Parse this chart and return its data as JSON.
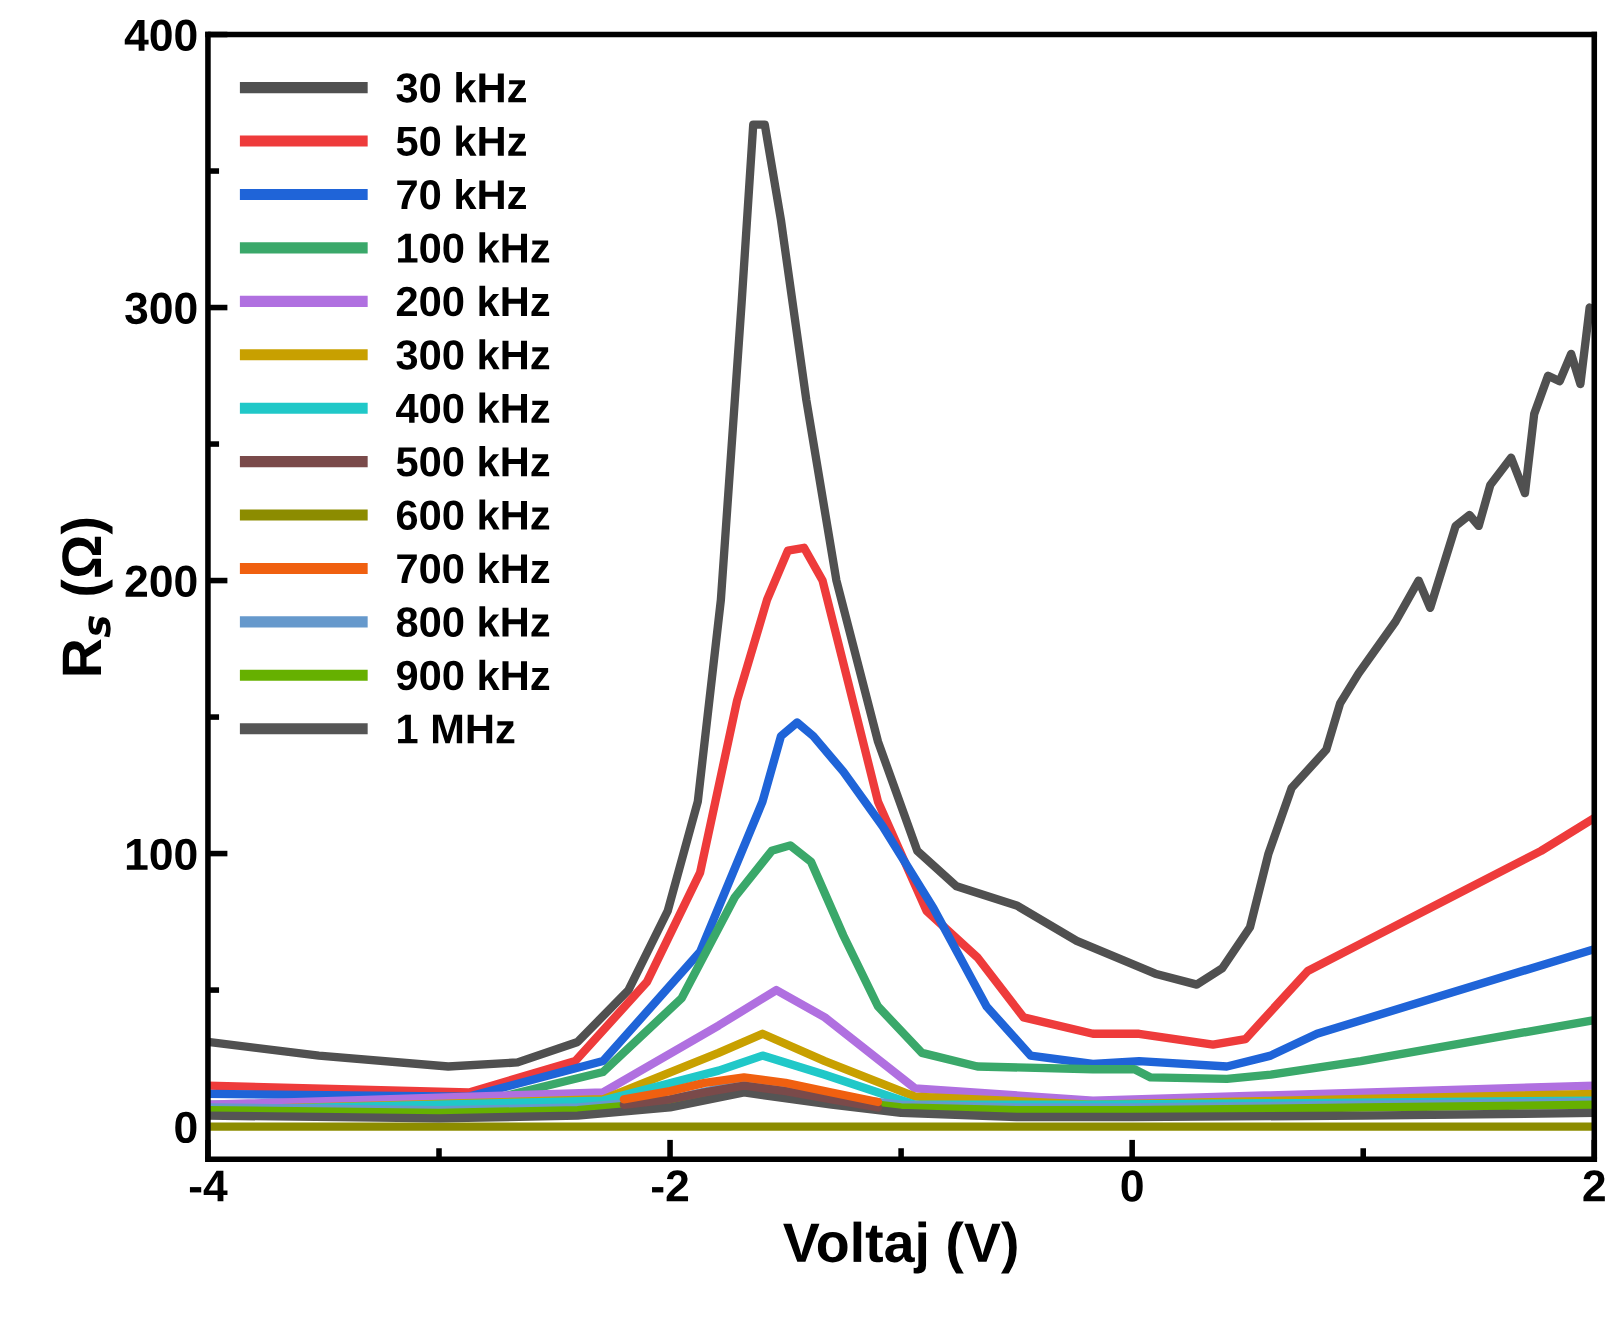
{
  "chart_data": {
    "type": "line",
    "xlabel": "Voltaj (V)",
    "ylabel": "R$_{s}$ (Ω)",
    "xlim": [
      -4,
      2
    ],
    "ylim": [
      -12,
      400
    ],
    "xticks": [
      -4,
      {
        "value": -3,
        "label": null
      },
      -2,
      {
        "value": -1,
        "label": null
      },
      0,
      {
        "value": 1,
        "label": null
      },
      2
    ],
    "yticks": [
      0,
      {
        "value": 50,
        "label": null
      },
      100,
      {
        "value": 150,
        "label": null
      },
      200,
      {
        "value": 250,
        "label": null
      },
      300,
      {
        "value": 350,
        "label": null
      },
      400
    ],
    "legend": "top left",
    "grid": false,
    "line_style": "solid",
    "marker": "none",
    "series": [
      {
        "name": "30 kHz",
        "color": "#505050",
        "x": [
          -4,
          -3.52,
          -2.96,
          -2.66,
          -2.4,
          -2.18,
          -2.01,
          -1.88,
          -1.78,
          -1.69,
          -1.64,
          -1.59,
          -1.52,
          -1.41,
          -1.28,
          -1.1,
          -0.93,
          -0.76,
          -0.5,
          -0.24,
          -0.04,
          0.1,
          0.28,
          0.39,
          0.51,
          0.59,
          0.69,
          0.84,
          0.9,
          0.98,
          1.14,
          1.24,
          1.29,
          1.4,
          1.46,
          1.5,
          1.55,
          1.64,
          1.7,
          1.74,
          1.8,
          1.85,
          1.9,
          1.94,
          1.98
        ],
        "values": [
          31,
          26,
          22,
          23.5,
          31,
          50,
          79,
          119,
          193,
          302,
          367,
          367,
          332,
          266,
          200,
          141,
          101,
          88,
          81,
          68,
          61,
          56,
          52,
          58,
          73,
          100,
          124,
          138,
          155,
          166,
          185,
          200,
          190,
          220,
          224,
          220,
          235,
          245,
          232,
          261,
          275,
          273,
          283,
          272,
          300
        ]
      },
      {
        "name": "50 kHz",
        "color": "#ee3b3b",
        "x": [
          -4,
          -2.87,
          -2.41,
          -2.1,
          -1.87,
          -1.71,
          -1.58,
          -1.49,
          -1.42,
          -1.34,
          -1.23,
          -1.1,
          -0.89,
          -0.67,
          -0.47,
          -0.17,
          0.03,
          0.35,
          0.49,
          0.76,
          0.99,
          1.38,
          1.77,
          2.0
        ],
        "values": [
          15,
          12.5,
          24,
          53,
          93,
          156,
          193,
          211,
          212,
          200,
          163,
          119,
          79,
          62,
          40,
          34,
          34,
          30,
          32,
          57,
          67,
          84,
          101,
          113
        ]
      },
      {
        "name": "70 kHz",
        "color": "#1f64d8",
        "x": [
          -4,
          -2.87,
          -2.29,
          -1.87,
          -1.6,
          -1.52,
          -1.45,
          -1.38,
          -1.25,
          -1.08,
          -0.86,
          -0.63,
          -0.44,
          -0.17,
          0.03,
          0.41,
          0.6,
          0.8,
          1.38,
          2.0
        ],
        "values": [
          12,
          11,
          24,
          64,
          119,
          143,
          148,
          143,
          130,
          110,
          80,
          44,
          26,
          23,
          24,
          22,
          26,
          34,
          49,
          65
        ]
      },
      {
        "name": "100 kHz",
        "color": "#3aa86a",
        "x": [
          -4,
          -2.87,
          -2.29,
          -1.95,
          -1.72,
          -1.56,
          -1.48,
          -1.39,
          -1.25,
          -1.1,
          -0.91,
          -0.67,
          -0.17,
          0.01,
          0.08,
          0.41,
          0.6,
          0.99,
          2.0
        ],
        "values": [
          8,
          8,
          20,
          47,
          84,
          101,
          103,
          97,
          70,
          44,
          27,
          22,
          21,
          21,
          18,
          17.5,
          19,
          24,
          39
        ]
      },
      {
        "name": "200 kHz",
        "color": "#b070e0",
        "x": [
          -4,
          -2.29,
          -1.79,
          -1.54,
          -1.33,
          -0.94,
          -0.17,
          2.0
        ],
        "values": [
          8,
          12.5,
          37,
          50,
          40,
          14,
          9.5,
          15
        ]
      },
      {
        "name": "300 kHz",
        "color": "#c8a000",
        "x": [
          -4,
          -2.29,
          -1.79,
          -1.6,
          -1.33,
          -0.94,
          -0.17,
          2.0
        ],
        "values": [
          6,
          10,
          27,
          34,
          24,
          11,
          8,
          12
        ]
      },
      {
        "name": "400 kHz",
        "color": "#20c8c8",
        "x": [
          -4,
          -2.29,
          -1.79,
          -1.6,
          -1.33,
          -0.94,
          -0.17,
          2.0
        ],
        "values": [
          6,
          9.5,
          20.5,
          26,
          19,
          8,
          8,
          9.5
        ]
      },
      {
        "name": "500 kHz",
        "color": "#7a4a4a",
        "x": [
          -2.2,
          -2,
          -1.85,
          -1.68,
          -1.5,
          -1.3,
          -1.1
        ],
        "values": [
          8,
          10,
          12.5,
          15,
          13,
          10,
          7
        ]
      },
      {
        "name": "600 kHz",
        "color": "#8c8c00",
        "x": [
          -4,
          2
        ],
        "values": [
          0,
          0
        ]
      },
      {
        "name": "700 kHz",
        "color": "#f06010",
        "x": [
          -2.2,
          -2,
          -1.85,
          -1.68,
          -1.5,
          -1.3,
          -1.1
        ],
        "values": [
          10,
          13,
          16,
          18,
          16,
          12.5,
          9
        ]
      },
      {
        "name": "800 kHz",
        "color": "#6699cc",
        "x": [
          -4,
          -3,
          -2.4,
          -2,
          -1.68,
          -1.3,
          -1,
          -0.5,
          0,
          1,
          2
        ],
        "values": [
          7,
          6,
          7,
          10,
          16,
          11,
          8,
          7,
          7,
          8,
          9
        ]
      },
      {
        "name": "900 kHz",
        "color": "#66b000",
        "x": [
          -4,
          -3,
          -2.4,
          -2,
          -1.68,
          -1.3,
          -1,
          -0.5,
          0,
          1,
          2
        ],
        "values": [
          6,
          5,
          6,
          9,
          14,
          10,
          7,
          6,
          6,
          7,
          8
        ]
      },
      {
        "name": "1 MHz",
        "color": "#555555",
        "x": [
          -4,
          -3,
          -2.4,
          -2,
          -1.68,
          -1.3,
          -1,
          -0.5,
          0,
          1,
          2
        ],
        "values": [
          4,
          3,
          4,
          7,
          12.5,
          8,
          5,
          3.5,
          3.5,
          4,
          5
        ]
      }
    ]
  }
}
